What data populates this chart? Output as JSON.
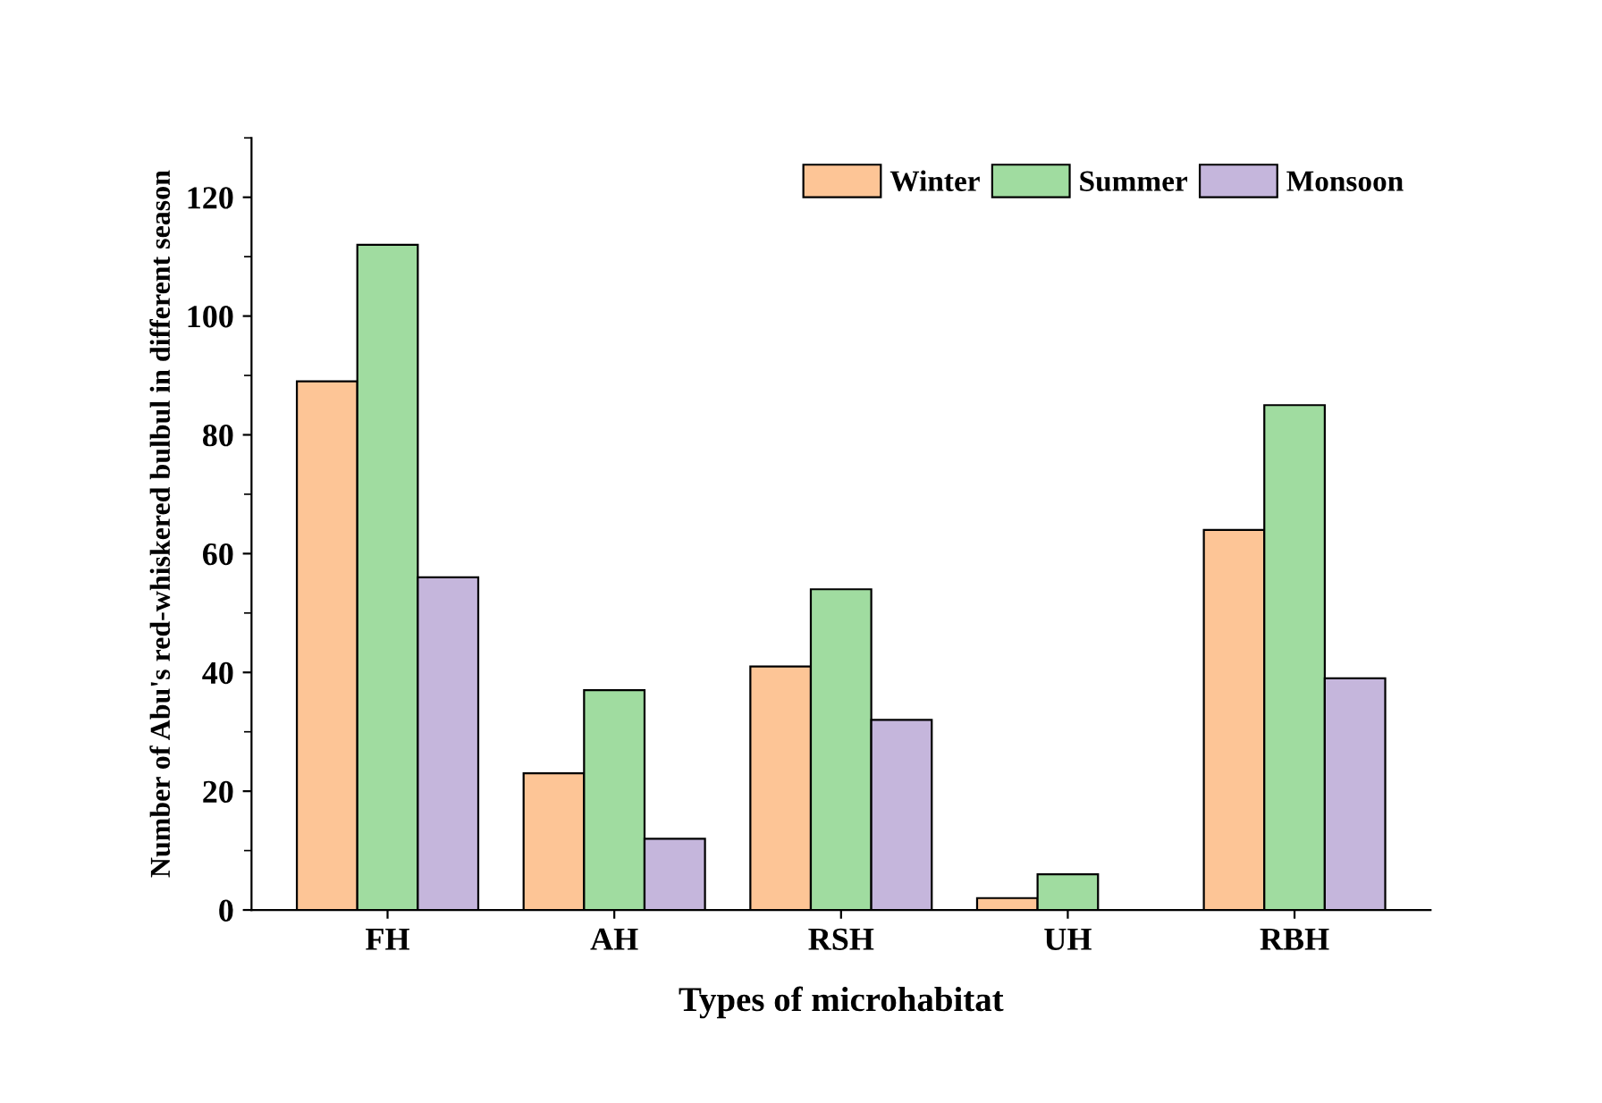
{
  "chart_data": {
    "type": "bar",
    "xlabel": "Types of microhabitat",
    "ylabel": "Number of Abu's red-whiskered bulbul in different season",
    "categories": [
      "FH",
      "AH",
      "RSH",
      "UH",
      "RBH"
    ],
    "series": [
      {
        "name": "Winter",
        "color": "#fdc596",
        "values": [
          89,
          23,
          41,
          2,
          64
        ]
      },
      {
        "name": "Summer",
        "color": "#a0dca0",
        "values": [
          112,
          37,
          54,
          6,
          85
        ]
      },
      {
        "name": "Monsoon",
        "color": "#c5b6dc",
        "values": [
          56,
          12,
          32,
          0,
          39
        ]
      }
    ],
    "ylim": [
      0,
      130
    ],
    "yticks": [
      0,
      20,
      40,
      60,
      80,
      100,
      120
    ],
    "legend": "top right",
    "grid": false
  }
}
